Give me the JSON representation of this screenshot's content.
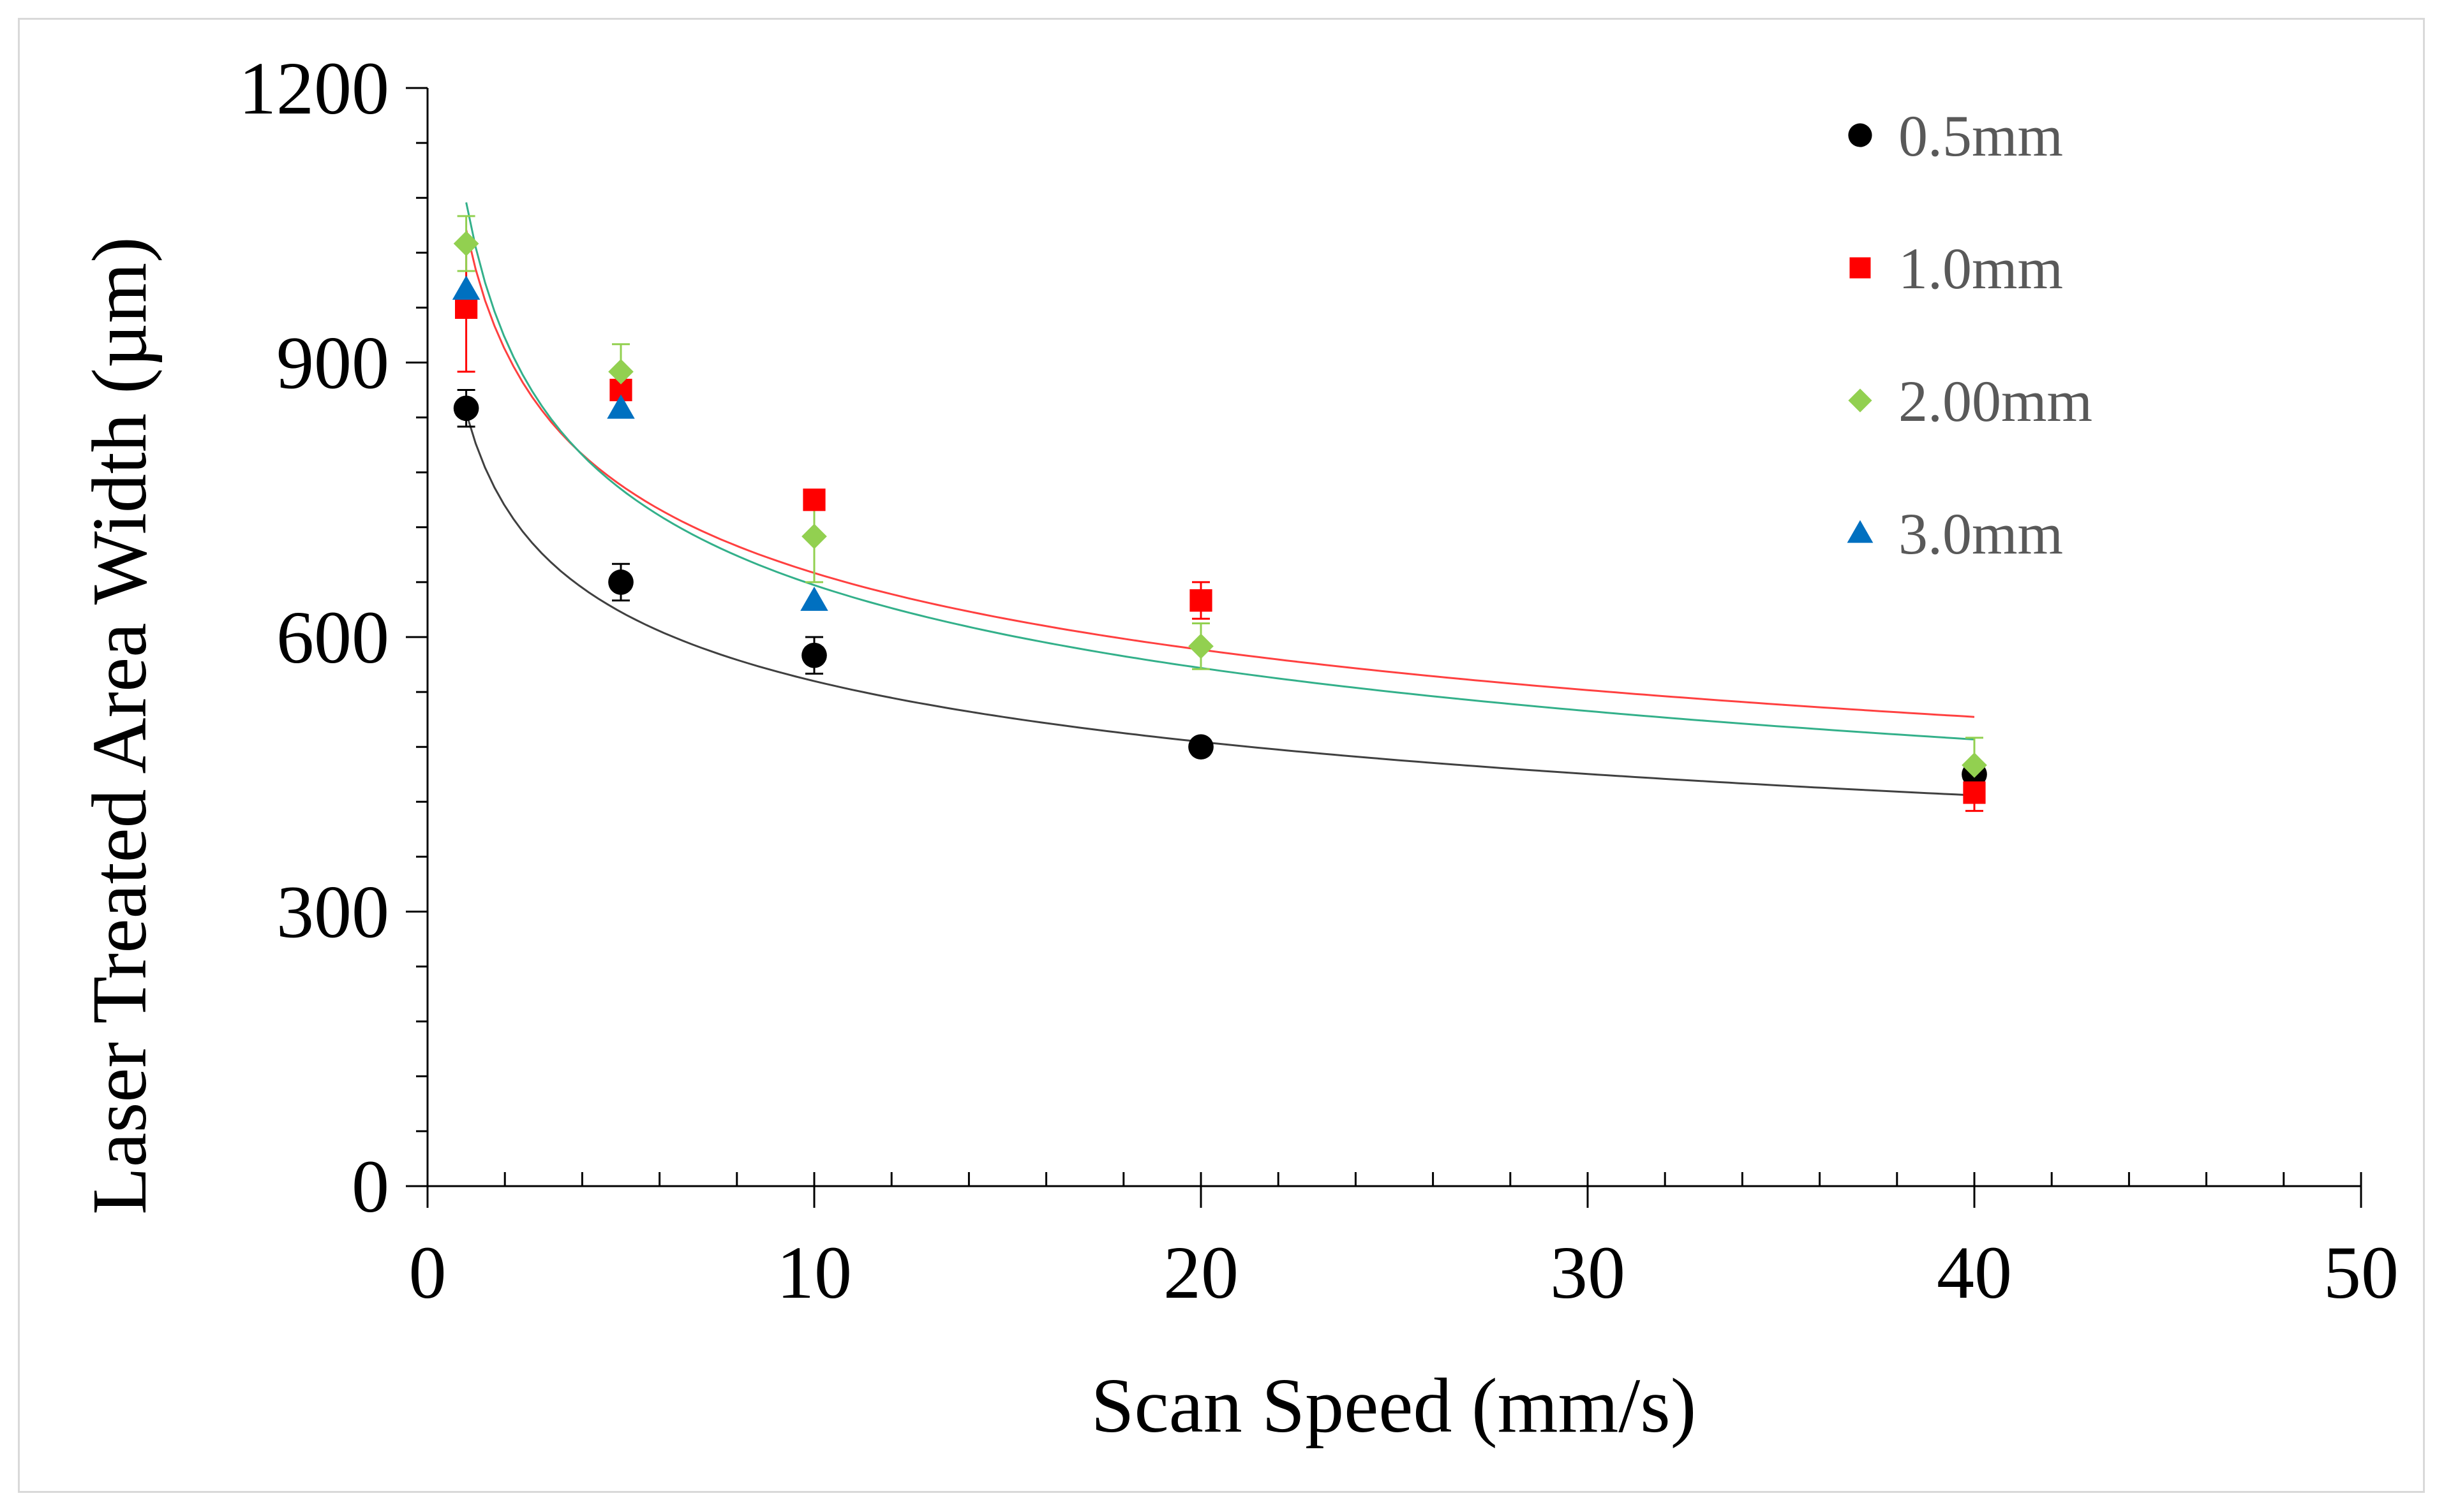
{
  "chart_data": {
    "type": "scatter",
    "title": "",
    "xlabel": "Scan Speed (mm/s)",
    "ylabel": "Laser Treated Area Width (µm)",
    "xlim": [
      0,
      50
    ],
    "ylim": [
      0,
      1200
    ],
    "xticks": [
      "0",
      "10",
      "20",
      "30",
      "40",
      "50"
    ],
    "yticks": [
      "0",
      "300",
      "600",
      "900",
      "1200"
    ],
    "x_minor_step": 2,
    "y_minor_step": 60,
    "grid": false,
    "legend_position": "top-right",
    "series": [
      {
        "name": "0.5mm",
        "marker": "circle",
        "color": "#000000",
        "trend_color": "#404040",
        "x": [
          1,
          5,
          10,
          20,
          40
        ],
        "y": [
          850,
          660,
          580,
          480,
          450
        ],
        "err": [
          20,
          20,
          20,
          0,
          10
        ],
        "trend": {
          "type": "power",
          "a": 845,
          "b": -0.185
        }
      },
      {
        "name": "1.0mm",
        "marker": "square",
        "color": "#ff0000",
        "trend_color": "#ff4040",
        "x": [
          1,
          5,
          10,
          20,
          40
        ],
        "y": [
          960,
          870,
          750,
          640,
          430
        ],
        "err": [
          70,
          0,
          0,
          20,
          20
        ],
        "trend": {
          "type": "power",
          "a": 1045,
          "b": -0.193
        }
      },
      {
        "name": "2.00mm",
        "marker": "diamond",
        "color": "#92d050",
        "trend_color": "#33b08a",
        "x": [
          1,
          5,
          10,
          20,
          40
        ],
        "y": [
          1030,
          890,
          710,
          590,
          460
        ],
        "err": [
          30,
          30,
          50,
          25,
          30
        ],
        "trend": {
          "type": "power",
          "a": 1075,
          "b": -0.214
        }
      },
      {
        "name": "3.0mm",
        "marker": "triangle",
        "color": "#0070c0",
        "trend_color": "#0070c0",
        "x": [
          1,
          5,
          10
        ],
        "y": [
          980,
          850,
          640
        ],
        "err": [
          0,
          0,
          0
        ],
        "trend": null
      }
    ]
  }
}
